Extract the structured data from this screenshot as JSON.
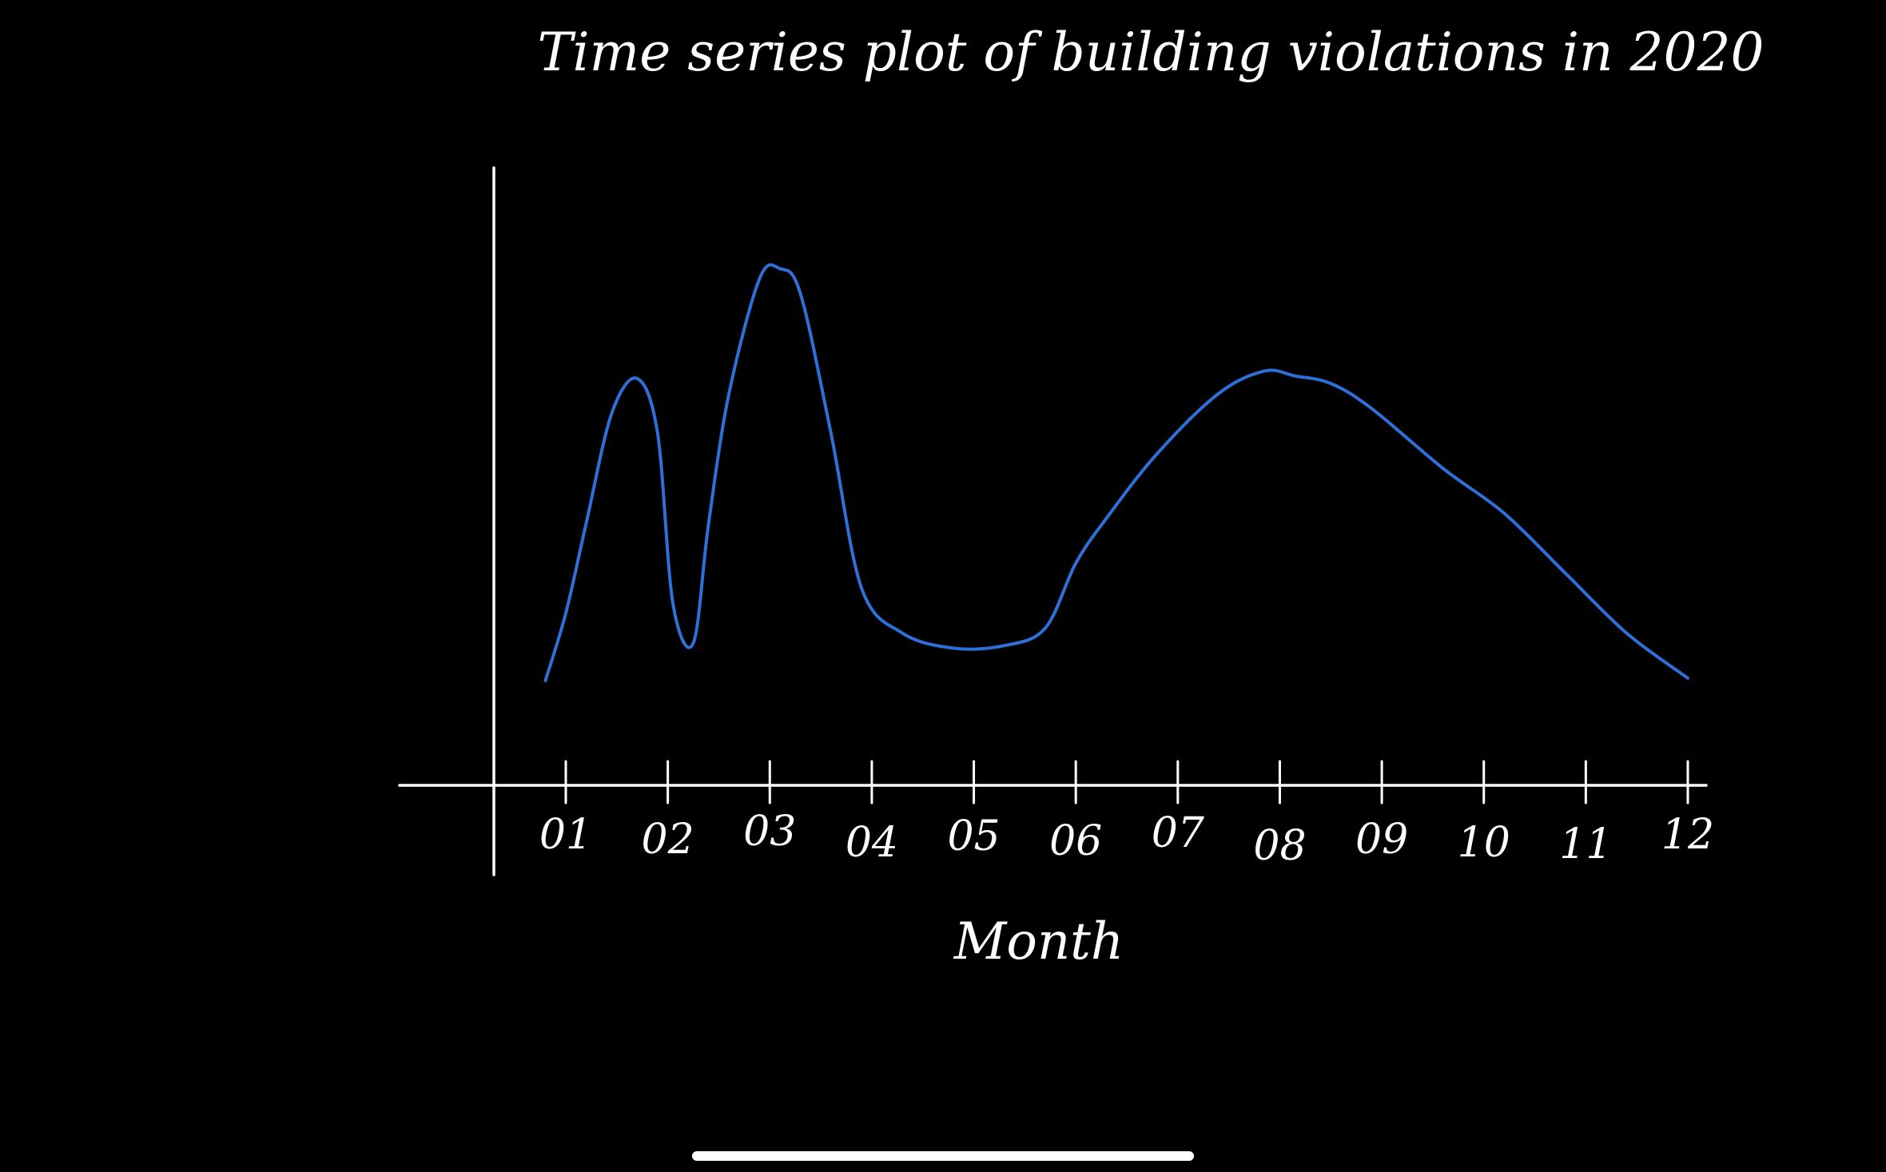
{
  "chart_data": {
    "type": "line",
    "title": "Time series plot of building violations in 2020",
    "xlabel": "Month",
    "ylabel": "",
    "categories": [
      "01",
      "02",
      "03",
      "04",
      "05",
      "06",
      "07",
      "08",
      "09",
      "10",
      "11",
      "12"
    ],
    "xlim": [
      0.6,
      12.3
    ],
    "ylim": [
      0,
      10
    ],
    "grid": false,
    "legend": "none",
    "line_color": "#2f6fd8",
    "axis_color": "#ffffff",
    "background": "#000000",
    "series": [
      {
        "x": [
          0.8,
          1.0,
          1.2,
          1.45,
          1.7,
          1.9,
          2.05,
          2.25,
          2.4,
          2.6,
          2.9,
          3.1,
          3.3,
          3.6,
          3.9,
          4.3,
          4.8,
          5.3,
          5.7,
          6.0,
          6.3,
          6.8,
          7.4,
          7.85,
          8.15,
          8.5,
          8.9,
          9.6,
          10.2,
          10.8,
          11.4,
          12.0
        ],
        "y": [
          0.85,
          2.2,
          4.0,
          6.2,
          6.9,
          5.8,
          2.4,
          1.6,
          4.0,
          6.6,
          8.9,
          9.1,
          8.6,
          5.8,
          2.7,
          1.8,
          1.5,
          1.55,
          1.9,
          3.2,
          4.1,
          5.4,
          6.6,
          7.05,
          6.95,
          6.8,
          6.3,
          5.1,
          4.2,
          3.0,
          1.8,
          0.9
        ]
      }
    ]
  }
}
